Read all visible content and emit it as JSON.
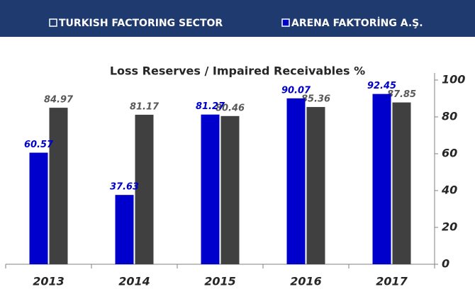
{
  "chart_data": {
    "type": "bar",
    "title": "Loss Reserves / Impaired Receivables %",
    "categories": [
      "2013",
      "2014",
      "2015",
      "2016",
      "2017"
    ],
    "series": [
      {
        "name": "TURKISH FACTORING SECTOR",
        "color": "#404040",
        "values": [
          84.97,
          81.17,
          80.46,
          85.36,
          87.85
        ]
      },
      {
        "name": "ARENA FAKTORİNG A.Ş.",
        "color": "#0000cc",
        "values": [
          60.57,
          37.63,
          81.27,
          90.07,
          92.45
        ]
      }
    ],
    "ylim": [
      0,
      100
    ],
    "yticks": [
      0,
      20,
      40,
      60,
      80,
      100
    ],
    "grid": false,
    "legend": "top"
  }
}
